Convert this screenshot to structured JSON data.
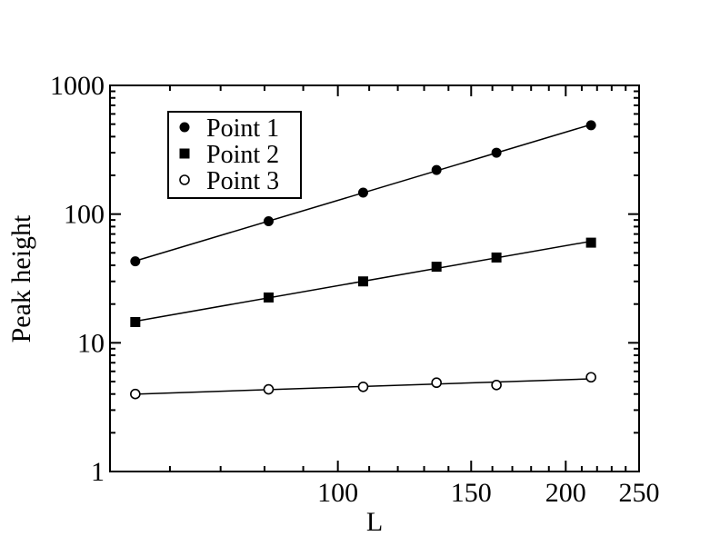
{
  "chart_data": {
    "type": "scatter",
    "title": "",
    "xlabel": "L",
    "ylabel": "Peak height",
    "x_scale": "log",
    "y_scale": "log",
    "xlim": [
      50,
      250
    ],
    "ylim": [
      1,
      1000
    ],
    "grid": false,
    "legend_position": "top-left",
    "x_ticks": [
      {
        "value": 100,
        "label": "100"
      },
      {
        "value": 150,
        "label": "150"
      },
      {
        "value": 200,
        "label": "200"
      },
      {
        "value": 250,
        "label": "250"
      }
    ],
    "y_ticks": [
      {
        "value": 1,
        "label": "1"
      },
      {
        "value": 10,
        "label": "10"
      },
      {
        "value": 100,
        "label": "100"
      },
      {
        "value": 1000,
        "label": "1000"
      }
    ],
    "series": [
      {
        "name": "Point 1",
        "marker": "filled-circle",
        "fit_line": true,
        "points": [
          [
            54,
            43
          ],
          [
            81,
            88
          ],
          [
            108,
            147
          ],
          [
            135,
            220
          ],
          [
            162,
            300
          ],
          [
            216,
            490
          ]
        ]
      },
      {
        "name": "Point 2",
        "marker": "filled-square",
        "fit_line": true,
        "points": [
          [
            54,
            14.5
          ],
          [
            81,
            22.5
          ],
          [
            108,
            30
          ],
          [
            135,
            39
          ],
          [
            162,
            46
          ],
          [
            216,
            60
          ]
        ]
      },
      {
        "name": "Point 3",
        "marker": "open-circle",
        "fit_line": true,
        "points": [
          [
            54,
            4
          ],
          [
            81,
            4.35
          ],
          [
            108,
            4.55
          ],
          [
            135,
            4.9
          ],
          [
            162,
            4.7
          ],
          [
            216,
            5.4
          ]
        ]
      }
    ]
  }
}
